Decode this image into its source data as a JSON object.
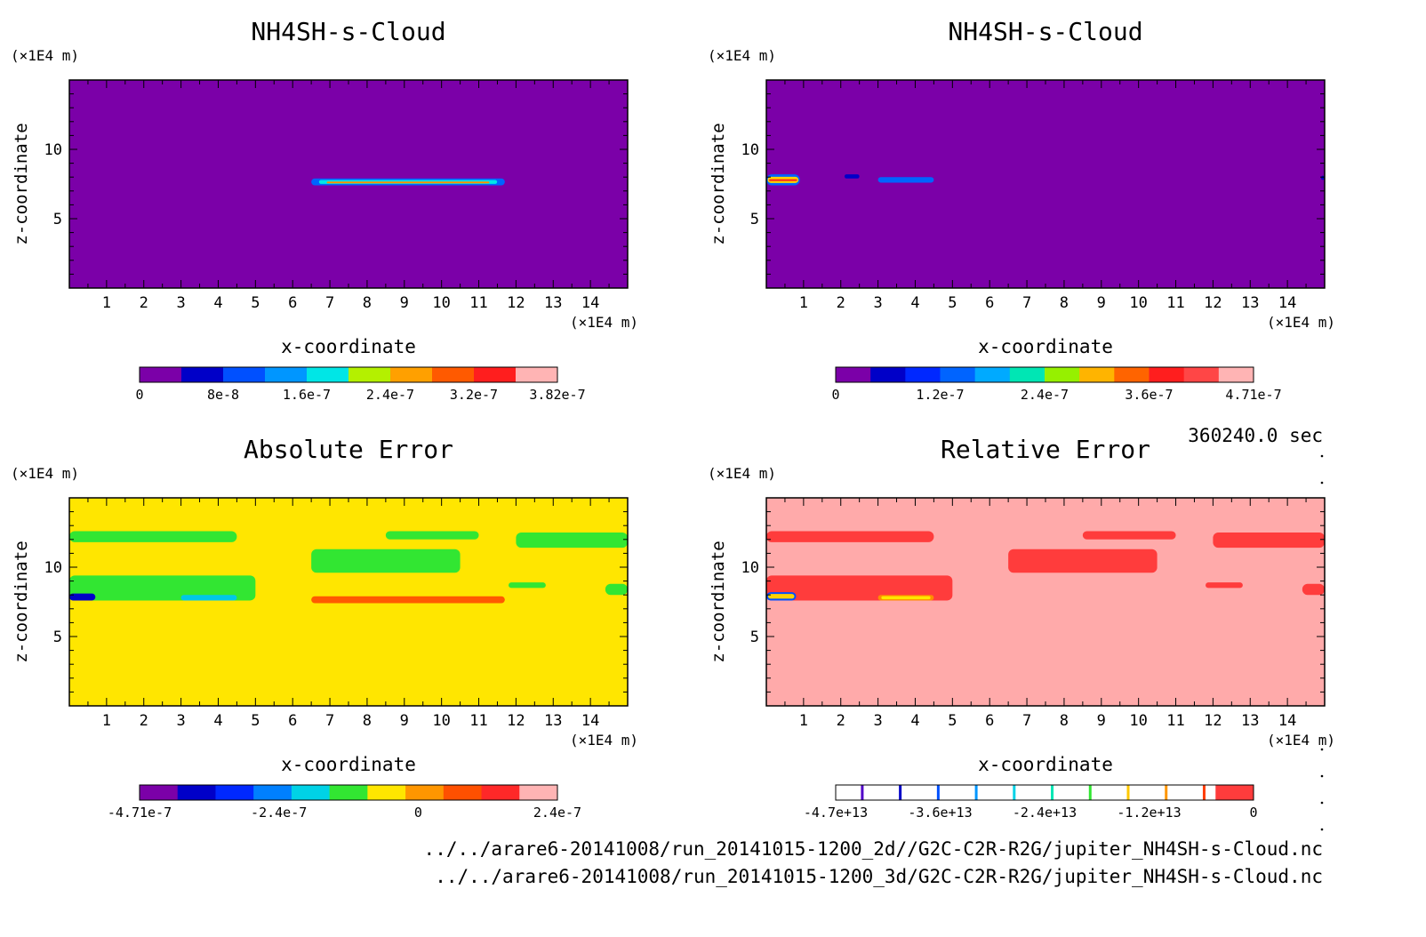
{
  "timestamp": "360240.0 sec",
  "footer_lines": [
    "../../arare6-20141008/run_20141015-1200_2d//G2C-C2R-R2G/jupiter_NH4SH-s-Cloud.nc",
    "../../arare6-20141008/run_20141015-1200_3d/G2C-C2R-R2G/jupiter_NH4SH-s-Cloud.nc"
  ],
  "chart_data": [
    {
      "type": "heatmap",
      "title": "NH4SH-s-Cloud",
      "xlabel": "x-coordinate",
      "ylabel": "z-coordinate",
      "x_unit": "(×1E4 m)",
      "y_unit": "(×1E4 m)",
      "xlim": [
        0,
        15
      ],
      "ylim": [
        0,
        15
      ],
      "x_ticks": [
        1,
        2,
        3,
        4,
        5,
        6,
        7,
        8,
        9,
        10,
        11,
        12,
        13,
        14
      ],
      "y_ticks": [
        5,
        10
      ],
      "background_color": "#7b00a8",
      "features": [
        {
          "x": [
            6.5,
            11.7
          ],
          "z": [
            7.4,
            7.9
          ],
          "colors": [
            "#0064ff",
            "#00e6e6",
            "#ff8c00"
          ]
        }
      ],
      "colorbar": {
        "colors": [
          "#7b00a8",
          "#0000c8",
          "#0050ff",
          "#0096ff",
          "#00e6e6",
          "#b4f000",
          "#ffa000",
          "#ff5a00",
          "#ff1e1e",
          "#ffb4b4"
        ],
        "tick_labels": [
          "0",
          "8e-8",
          "1.6e-7",
          "2.4e-7",
          "3.2e-7",
          "3.82e-7"
        ]
      }
    },
    {
      "type": "heatmap",
      "title": "NH4SH-s-Cloud",
      "xlabel": "x-coordinate",
      "ylabel": "z-coordinate",
      "x_unit": "(×1E4 m)",
      "y_unit": "(×1E4 m)",
      "xlim": [
        0,
        15
      ],
      "ylim": [
        0,
        15
      ],
      "x_ticks": [
        1,
        2,
        3,
        4,
        5,
        6,
        7,
        8,
        9,
        10,
        11,
        12,
        13,
        14
      ],
      "y_ticks": [
        5,
        10
      ],
      "background_color": "#7b00a8",
      "features": [
        {
          "x": [
            0,
            0.9
          ],
          "z": [
            7.4,
            8.2
          ],
          "colors": [
            "#0064ff",
            "#ffd200",
            "#ff1e1e"
          ]
        },
        {
          "x": [
            2.1,
            2.5
          ],
          "z": [
            7.9,
            8.2
          ],
          "colors": [
            "#0000c8"
          ]
        },
        {
          "x": [
            3.0,
            4.5
          ],
          "z": [
            7.6,
            8.0
          ],
          "colors": [
            "#0064ff"
          ]
        },
        {
          "x": [
            14.9,
            15
          ],
          "z": [
            7.8,
            8.1
          ],
          "colors": [
            "#0000c8"
          ]
        }
      ],
      "colorbar": {
        "colors": [
          "#7b00a8",
          "#0000c8",
          "#0028ff",
          "#0064ff",
          "#00aaff",
          "#00e6b4",
          "#96f000",
          "#ffb400",
          "#ff6400",
          "#ff1e1e",
          "#ff4646",
          "#ffb4b4"
        ],
        "tick_labels": [
          "0",
          "1.2e-7",
          "2.4e-7",
          "3.6e-7",
          "4.71e-7"
        ]
      }
    },
    {
      "type": "heatmap",
      "title": "Absolute Error",
      "xlabel": "x-coordinate",
      "ylabel": "z-coordinate",
      "x_unit": "(×1E4 m)",
      "y_unit": "(×1E4 m)",
      "xlim": [
        0,
        15
      ],
      "ylim": [
        0,
        15
      ],
      "x_ticks": [
        1,
        2,
        3,
        4,
        5,
        6,
        7,
        8,
        9,
        10,
        11,
        12,
        13,
        14
      ],
      "y_ticks": [
        5,
        10
      ],
      "background_color": "#ffe600",
      "features": [
        {
          "x": [
            0,
            5
          ],
          "z": [
            7.6,
            9.4
          ],
          "colors": [
            "#32e632"
          ]
        },
        {
          "x": [
            0,
            4.5
          ],
          "z": [
            11.8,
            12.6
          ],
          "colors": [
            "#32e632"
          ]
        },
        {
          "x": [
            6.5,
            10.5
          ],
          "z": [
            9.6,
            11.3
          ],
          "colors": [
            "#32e632"
          ]
        },
        {
          "x": [
            8.5,
            11.0
          ],
          "z": [
            12.0,
            12.6
          ],
          "colors": [
            "#32e632"
          ]
        },
        {
          "x": [
            12.0,
            15
          ],
          "z": [
            11.4,
            12.5
          ],
          "colors": [
            "#32e632"
          ]
        },
        {
          "x": [
            14.4,
            15
          ],
          "z": [
            8.0,
            8.8
          ],
          "colors": [
            "#32e632"
          ]
        },
        {
          "x": [
            11.8,
            12.8
          ],
          "z": [
            8.5,
            8.9
          ],
          "colors": [
            "#32e632"
          ]
        },
        {
          "x": [
            0,
            0.7
          ],
          "z": [
            7.6,
            8.1
          ],
          "colors": [
            "#0000c8"
          ]
        },
        {
          "x": [
            3.0,
            4.5
          ],
          "z": [
            7.6,
            8.0
          ],
          "colors": [
            "#00c8e6"
          ]
        },
        {
          "x": [
            6.5,
            11.7
          ],
          "z": [
            7.4,
            7.9
          ],
          "colors": [
            "#ff5a00"
          ]
        }
      ],
      "colorbar": {
        "colors": [
          "#7b00a8",
          "#0000c8",
          "#0028ff",
          "#0080ff",
          "#00d2e6",
          "#32e632",
          "#ffe600",
          "#ff9600",
          "#ff5000",
          "#ff2828",
          "#ffb4b4"
        ],
        "tick_labels": [
          "-4.71e-7",
          "-2.4e-7",
          "0",
          "2.4e-7"
        ]
      }
    },
    {
      "type": "heatmap",
      "title": "Relative Error",
      "xlabel": "x-coordinate",
      "ylabel": "z-coordinate",
      "x_unit": "(×1E4 m)",
      "y_unit": "(×1E4 m)",
      "xlim": [
        0,
        15
      ],
      "ylim": [
        0,
        15
      ],
      "x_ticks": [
        1,
        2,
        3,
        4,
        5,
        6,
        7,
        8,
        9,
        10,
        11,
        12,
        13,
        14
      ],
      "y_ticks": [
        5,
        10
      ],
      "background_color": "#ffaaaa",
      "features": [
        {
          "x": [
            0,
            5
          ],
          "z": [
            7.6,
            9.4
          ],
          "colors": [
            "#ff3c3c"
          ]
        },
        {
          "x": [
            0,
            4.5
          ],
          "z": [
            11.8,
            12.6
          ],
          "colors": [
            "#ff3c3c"
          ]
        },
        {
          "x": [
            6.5,
            10.5
          ],
          "z": [
            9.6,
            11.3
          ],
          "colors": [
            "#ff3c3c"
          ]
        },
        {
          "x": [
            8.5,
            11.0
          ],
          "z": [
            12.0,
            12.6
          ],
          "colors": [
            "#ff3c3c"
          ]
        },
        {
          "x": [
            12.0,
            15
          ],
          "z": [
            11.4,
            12.5
          ],
          "colors": [
            "#ff3c3c"
          ]
        },
        {
          "x": [
            14.4,
            15
          ],
          "z": [
            8.0,
            8.8
          ],
          "colors": [
            "#ff3c3c"
          ]
        },
        {
          "x": [
            11.8,
            12.8
          ],
          "z": [
            8.5,
            8.9
          ],
          "colors": [
            "#ff3c3c"
          ]
        },
        {
          "x": [
            0,
            0.8
          ],
          "z": [
            7.6,
            8.2
          ],
          "colors": [
            "#0050ff",
            "#ffd200"
          ]
        },
        {
          "x": [
            3.0,
            4.5
          ],
          "z": [
            7.6,
            8.0
          ],
          "colors": [
            "#ff8c00",
            "#ffe600"
          ]
        }
      ],
      "colorbar": {
        "colors": [
          "#ffffff",
          "#ffffff",
          "#ffffff",
          "#ffffff",
          "#ffffff",
          "#ffffff",
          "#ffffff",
          "#ffffff",
          "#ffffff",
          "#ffffff",
          "#ff3c3c"
        ],
        "line_marks": [
          "#5000c8",
          "#0000c8",
          "#0050ff",
          "#0096ff",
          "#00d2e6",
          "#00e6b4",
          "#32e632",
          "#ffc800",
          "#ff9600",
          "#ff3c00"
        ],
        "tick_labels": [
          "-4.7e+13",
          "-3.6e+13",
          "-2.4e+13",
          "-1.2e+13",
          "0"
        ]
      }
    }
  ]
}
